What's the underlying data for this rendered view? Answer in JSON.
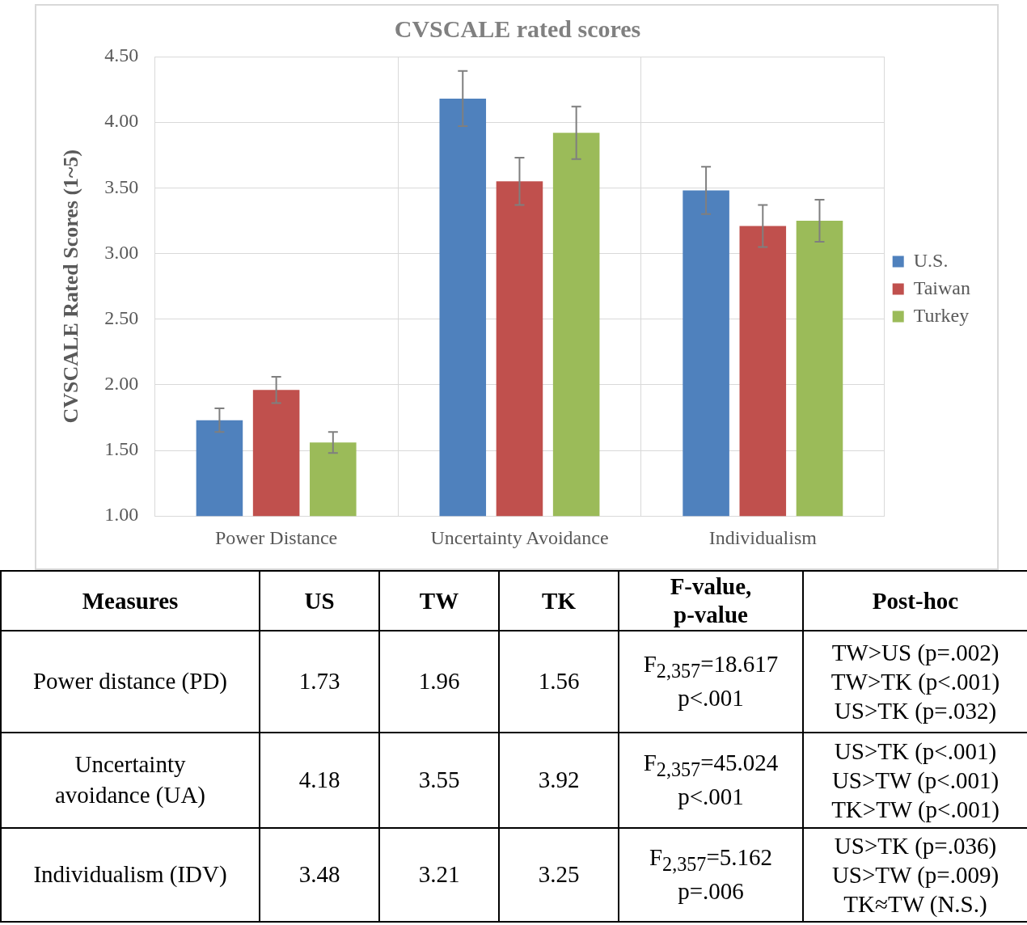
{
  "chart_data": [
    {
      "type": "bar",
      "title": "CVSCALE rated scores",
      "ylabel": "CVSCALE Rated Scores (1~5)",
      "categories": [
        "Power Distance",
        "Uncertainty Avoidance",
        "Individualism"
      ],
      "series": [
        {
          "name": "U.S.",
          "color": "#4f81bd",
          "values": [
            1.73,
            4.18,
            3.48
          ],
          "errors": [
            0.09,
            0.21,
            0.18
          ]
        },
        {
          "name": "Taiwan",
          "color": "#c0504d",
          "values": [
            1.96,
            3.55,
            3.21
          ],
          "errors": [
            0.1,
            0.18,
            0.16
          ]
        },
        {
          "name": "Turkey",
          "color": "#9bbb59",
          "values": [
            1.56,
            3.92,
            3.25
          ],
          "errors": [
            0.08,
            0.2,
            0.16
          ]
        }
      ],
      "ylim": [
        1,
        4.5
      ],
      "yticks": [
        {
          "value": 1,
          "label": "1.00"
        },
        {
          "value": 1.5,
          "label": "1.50"
        },
        {
          "value": 2,
          "label": "2.00"
        },
        {
          "value": 2.5,
          "label": "2.50"
        },
        {
          "value": 3,
          "label": "3.00"
        },
        {
          "value": 3.5,
          "label": "3.50"
        },
        {
          "value": 4,
          "label": "4.00"
        },
        {
          "value": 4.5,
          "label": "4.50"
        }
      ],
      "grid": true,
      "legend": "right"
    },
    {
      "type": "other",
      "annotations": [
        "Measures",
        "US",
        "TW",
        "TK",
        "F-value,\np-value",
        "Post-hoc",
        "Power distance (PD)",
        "1.73",
        "1.96",
        "1.56",
        "F$_{2,357}$=18.617\np<.001",
        "TW>US (p=.002)\nTW>TK (p<.001)\nUS>TK (p=.032)",
        "Uncertainty\navoidance (UA)",
        "4.18",
        "3.55",
        "3.92",
        "F$_{2,357}$=45.024\np<.001",
        "US>TK (p<.001)\nUS>TW (p<.001)\nTK>TW (p<.001)",
        "Individualism (IDV)",
        "3.48",
        "3.21",
        "3.25",
        "F$_{2,357}$=5.162\np=.006",
        "US>TK (p=.036)\nUS>TW (p=.009)\nTK≈TW (N.S.)"
      ]
    }
  ]
}
